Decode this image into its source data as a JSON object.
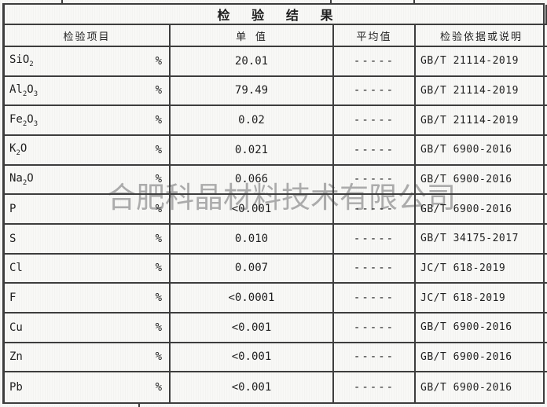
{
  "report": {
    "title": "检 验 结 果",
    "watermark": "合肥科晶材料技术有限公司",
    "header": {
      "item": "检验项目",
      "single_value": "单 值",
      "average": "平均值",
      "basis": "检验依据或说明"
    },
    "rows": [
      {
        "item": "SiO2",
        "unit": "%",
        "value": "20.01",
        "average": "-----",
        "basis": "GB/T 21114-2019"
      },
      {
        "item": "Al2O3",
        "unit": "%",
        "value": "79.49",
        "average": "-----",
        "basis": "GB/T 21114-2019"
      },
      {
        "item": "Fe2O3",
        "unit": "%",
        "value": "0.02",
        "average": "-----",
        "basis": "GB/T 21114-2019"
      },
      {
        "item": "K2O",
        "unit": "%",
        "value": "0.021",
        "average": "-----",
        "basis": "GB/T 6900-2016"
      },
      {
        "item": "Na2O",
        "unit": "%",
        "value": "0.066",
        "average": "-----",
        "basis": "GB/T 6900-2016"
      },
      {
        "item": "P",
        "unit": "%",
        "value": "<0.001",
        "average": "-----",
        "basis": "GB/T 6900-2016"
      },
      {
        "item": "S",
        "unit": "%",
        "value": "0.010",
        "average": "-----",
        "basis": "GB/T 34175-2017"
      },
      {
        "item": "Cl",
        "unit": "%",
        "value": "0.007",
        "average": "-----",
        "basis": "JC/T 618-2019"
      },
      {
        "item": "F",
        "unit": "%",
        "value": "<0.0001",
        "average": "-----",
        "basis": "JC/T 618-2019"
      },
      {
        "item": "Cu",
        "unit": "%",
        "value": "<0.001",
        "average": "-----",
        "basis": "GB/T 6900-2016"
      },
      {
        "item": "Zn",
        "unit": "%",
        "value": "<0.001",
        "average": "-----",
        "basis": "GB/T 6900-2016"
      },
      {
        "item": "Pb",
        "unit": "%",
        "value": "<0.001",
        "average": "-----",
        "basis": "GB/T 6900-2016"
      }
    ]
  },
  "colors": {
    "line": "#3d3d3d",
    "text": "#1f1f1f",
    "watermark": "#ababab",
    "paper": "#f8f8f6"
  }
}
